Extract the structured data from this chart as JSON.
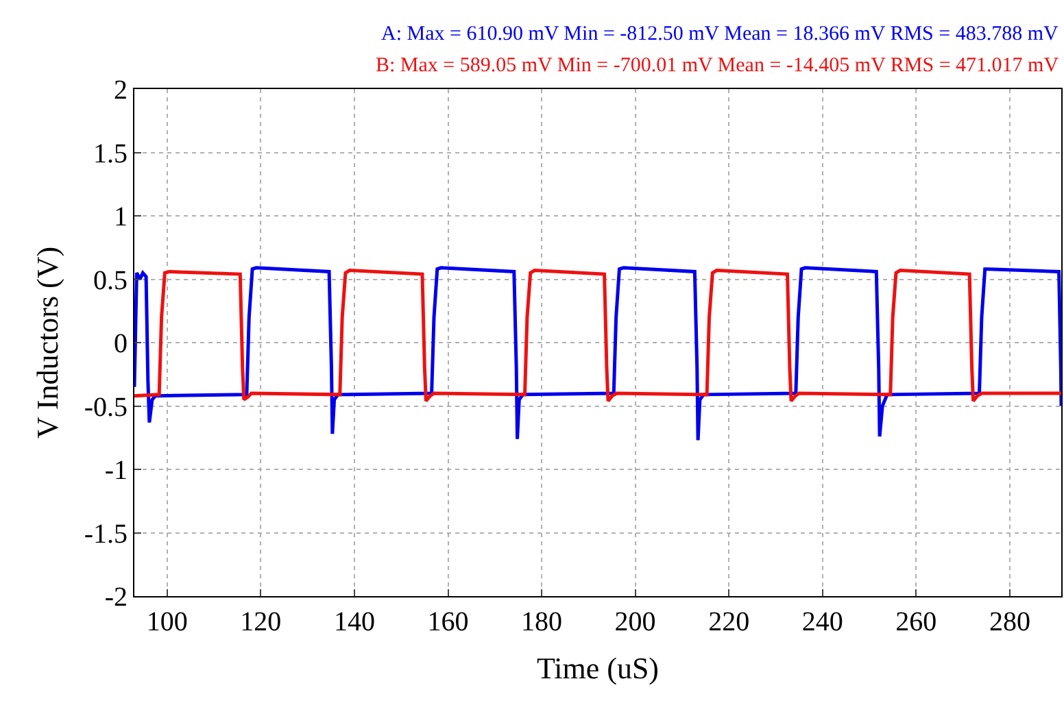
{
  "chart_data": {
    "type": "line",
    "xlabel": "Time (uS)",
    "ylabel": "V Inductors (V)",
    "annotations": [
      "A: Max = 610.90 mV Min = -812.50 mV Mean = 18.366 mV RMS = 483.788 mV",
      "B: Max = 589.05 mV Min = -700.01 mV Mean = -14.405 mV RMS = 471.017 mV"
    ],
    "xlim": [
      93,
      291
    ],
    "xticks": [
      100,
      120,
      140,
      160,
      180,
      200,
      220,
      240,
      260,
      280
    ],
    "ylim": [
      -2,
      2
    ],
    "yticks": [
      -2,
      -1.5,
      -1,
      -0.5,
      0,
      0.5,
      1,
      1.5,
      2
    ],
    "grid": true,
    "legend": false,
    "line_style": "solid",
    "marker": "none",
    "series": [
      {
        "color": "#0000ee",
        "x": [
          93,
          93.5,
          94.2,
          94.8,
          95.5,
          95.9,
          96.2,
          96.8,
          97.5,
          117,
          117.5,
          118.2,
          119,
          134.6,
          135.1,
          135.3,
          135.7,
          136.5,
          156.5,
          157,
          157.7,
          158.5,
          174.1,
          174.6,
          174.8,
          175.2,
          176,
          195.4,
          195.9,
          196.6,
          197.5,
          212.7,
          213.2,
          213.4,
          213.8,
          214.6,
          234.3,
          234.8,
          235.5,
          236.3,
          251.5,
          252,
          252.2,
          252.8,
          253.8,
          273.5,
          274,
          274.7,
          275.5,
          290.5,
          290.9,
          291
        ],
        "values": [
          -0.35,
          0.55,
          0.5,
          0.55,
          0.52,
          -0.3,
          -0.63,
          -0.45,
          -0.42,
          -0.41,
          0.2,
          0.58,
          0.59,
          0.56,
          -0.2,
          -0.72,
          -0.45,
          -0.41,
          -0.4,
          0.2,
          0.58,
          0.59,
          0.56,
          -0.2,
          -0.76,
          -0.45,
          -0.41,
          -0.4,
          0.2,
          0.58,
          0.59,
          0.56,
          -0.2,
          -0.77,
          -0.45,
          -0.41,
          -0.4,
          0.2,
          0.58,
          0.59,
          0.56,
          -0.2,
          -0.74,
          -0.5,
          -0.41,
          -0.4,
          0.2,
          0.58,
          0.58,
          0.56,
          -0.2,
          -0.5
        ]
      },
      {
        "color": "#ee1111",
        "x": [
          93,
          98.3,
          98.8,
          99.5,
          100.5,
          115.6,
          116.1,
          116.4,
          117.2,
          118,
          136.9,
          137.4,
          138.1,
          139,
          154.5,
          155,
          155.3,
          156.2,
          157,
          176.4,
          176.9,
          177.6,
          178.5,
          193.4,
          193.9,
          194.2,
          195.1,
          196,
          215.3,
          215.8,
          216.5,
          217.4,
          232.5,
          233,
          233.3,
          234.2,
          235,
          254.5,
          255,
          255.7,
          256.6,
          271.4,
          271.9,
          272.2,
          273.1,
          274,
          291
        ],
        "values": [
          -0.42,
          -0.41,
          0.2,
          0.55,
          0.56,
          0.54,
          -0.2,
          -0.45,
          -0.43,
          -0.4,
          -0.41,
          0.2,
          0.55,
          0.57,
          0.54,
          -0.2,
          -0.46,
          -0.42,
          -0.4,
          -0.41,
          0.2,
          0.55,
          0.57,
          0.54,
          -0.2,
          -0.46,
          -0.42,
          -0.4,
          -0.41,
          0.2,
          0.55,
          0.57,
          0.54,
          -0.2,
          -0.46,
          -0.42,
          -0.4,
          -0.41,
          0.2,
          0.55,
          0.57,
          0.54,
          -0.2,
          -0.46,
          -0.42,
          -0.4,
          -0.4
        ]
      }
    ]
  }
}
